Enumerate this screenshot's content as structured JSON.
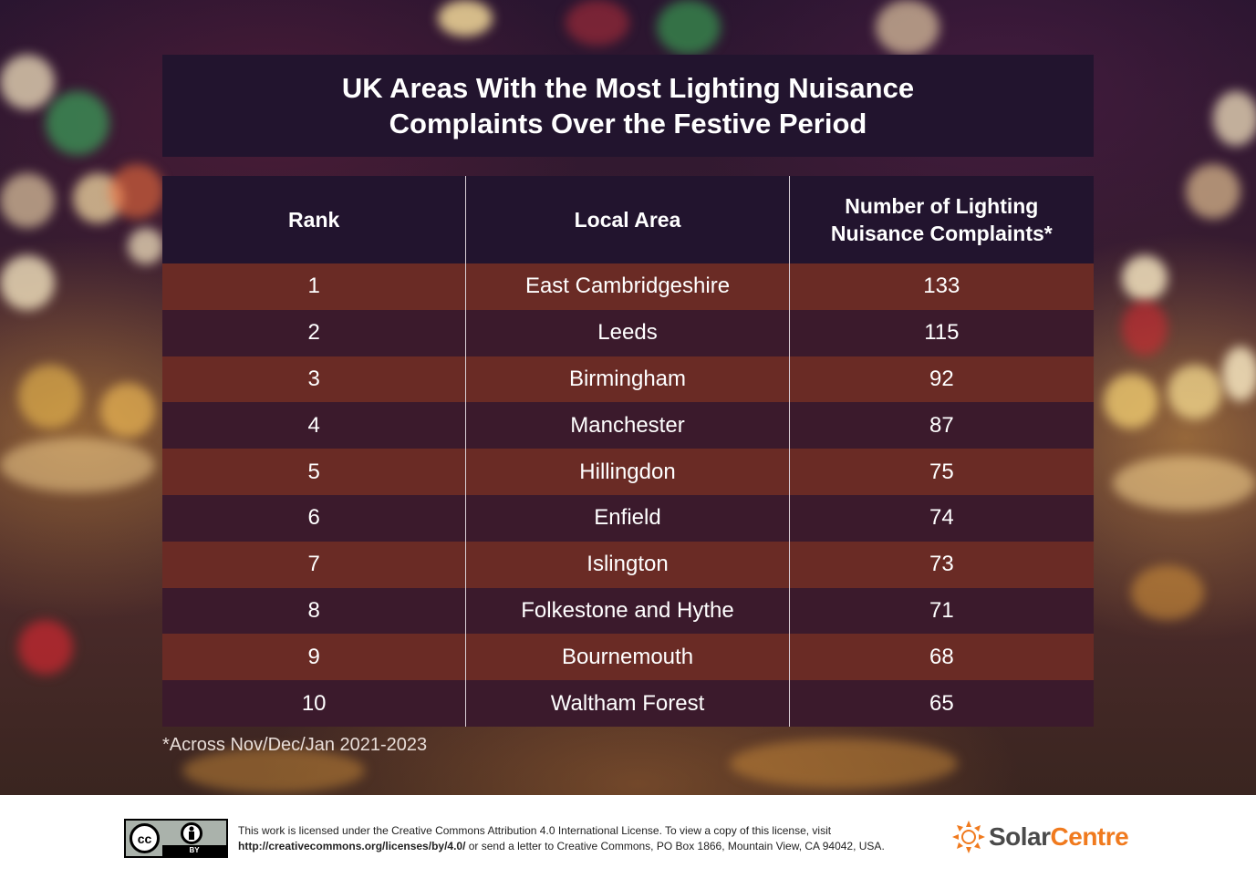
{
  "title": "UK Areas With the Most Lighting Nuisance Complaints Over the Festive Period",
  "table": {
    "headers": [
      "Rank",
      "Local Area",
      "Number of Lighting Nuisance Complaints*"
    ],
    "rows": [
      [
        "1",
        "East Cambridgeshire",
        "133"
      ],
      [
        "2",
        "Leeds",
        "115"
      ],
      [
        "3",
        "Birmingham",
        "92"
      ],
      [
        "4",
        "Manchester",
        "87"
      ],
      [
        "5",
        "Hillingdon",
        "75"
      ],
      [
        "6",
        "Enfield",
        "74"
      ],
      [
        "7",
        "Islington",
        "73"
      ],
      [
        "8",
        "Folkestone and Hythe",
        "71"
      ],
      [
        "9",
        "Bournemouth",
        "68"
      ],
      [
        "10",
        "Waltham Forest",
        "65"
      ]
    ]
  },
  "footnote": "*Across Nov/Dec/Jan 2021-2023",
  "footer": {
    "cc_badge": {
      "cc": "cc",
      "by": "BY"
    },
    "license_line1": "This work is licensed under the Creative Commons Attribution 4.0 International License. To view a copy of this license, visit",
    "license_url": "http://creativecommons.org/licenses/by/4.0/",
    "license_line2_rest": " or send a letter to Creative Commons, PO Box 1866, Mountain View, CA 94042, USA.",
    "logo_solar": "Solar",
    "logo_centre": "Centre",
    "logo_icon": "sun-icon"
  },
  "colors": {
    "header_bg": "#22142e",
    "row_odd": "#6a2b25",
    "row_even": "#3b1a2c",
    "brand_orange": "#f07a1e"
  }
}
